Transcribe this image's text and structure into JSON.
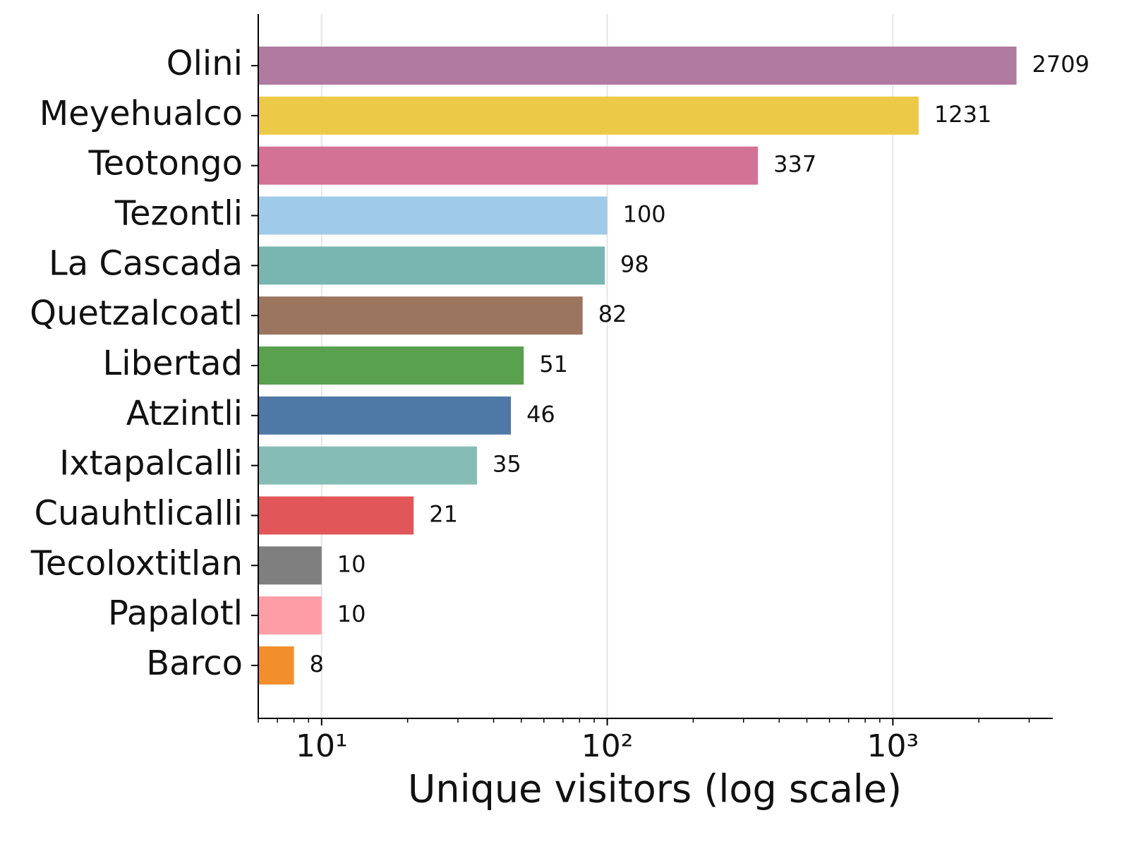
{
  "chart_data": {
    "type": "barh",
    "x_label": "Unique visitors (log scale)",
    "xscale": "log",
    "grid": true,
    "categories": [
      "Olini",
      "Meyehualco",
      "Teotongo",
      "Tezontli",
      "La Cascada",
      "Quetzalcoatl",
      "Libertad",
      "Atzintli",
      "Ixtapalcalli",
      "Cuauhtlicalli",
      "Tecoloxtitlan",
      "Papalotl",
      "Barco"
    ],
    "values": [
      2709,
      1231,
      337,
      100,
      98,
      82,
      51,
      46,
      35,
      21,
      10,
      10,
      8
    ],
    "colors": [
      "#b07aa1",
      "#edc948",
      "#d37295",
      "#a0cbe8",
      "#79b6b1",
      "#9c755f",
      "#59a14f",
      "#4e79a7",
      "#86bcb6",
      "#e15759",
      "#7f7f7f",
      "#ff9da7",
      "#f28e2b"
    ],
    "xlim": [
      6,
      3630
    ],
    "xticks": [
      {
        "value": 10,
        "label": "10¹"
      },
      {
        "value": 100,
        "label": "10²"
      },
      {
        "value": 1000,
        "label": "10³"
      }
    ],
    "xminorticks": [
      6,
      7,
      8,
      9,
      20,
      30,
      40,
      50,
      60,
      70,
      80,
      90,
      200,
      300,
      400,
      500,
      600,
      700,
      800,
      900,
      2000,
      3000
    ]
  }
}
